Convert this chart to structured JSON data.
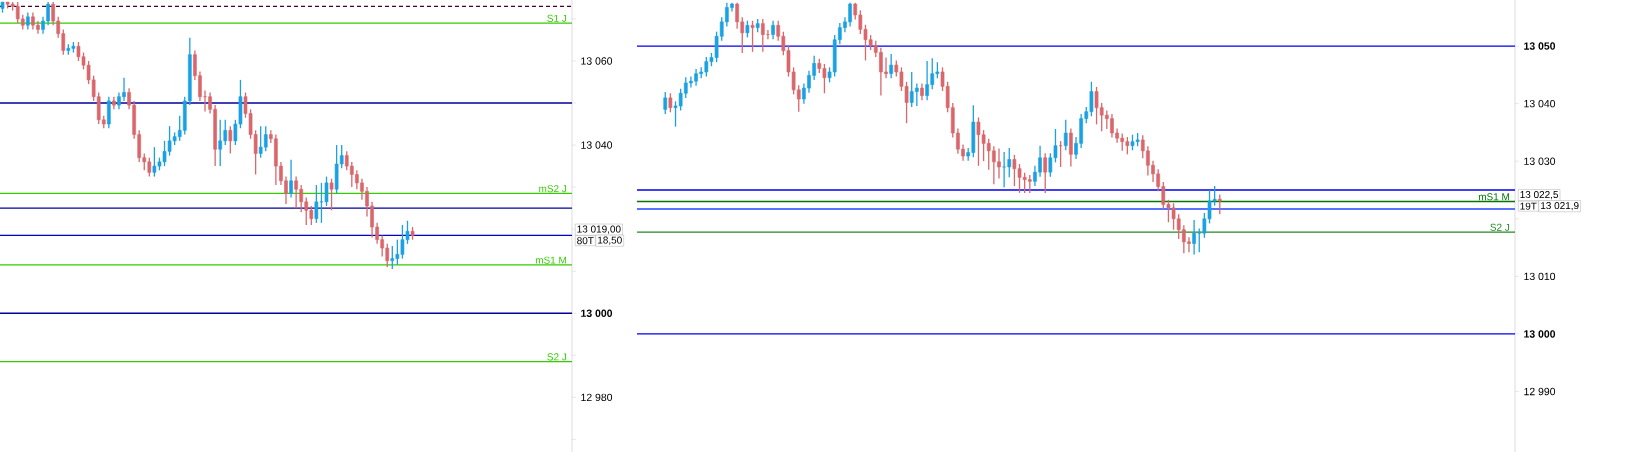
{
  "chart_data": [
    {
      "type": "candlestick",
      "categories": [
        null,
        null,
        null,
        null,
        null,
        null,
        null,
        null,
        null,
        null,
        null,
        null,
        null,
        null,
        null,
        null,
        null,
        null,
        null,
        null,
        null,
        null,
        null,
        null,
        null,
        null,
        null,
        null,
        null,
        null,
        null,
        null,
        null,
        null,
        null,
        null,
        null,
        null,
        null,
        null,
        null,
        null,
        null,
        null,
        null,
        null,
        null,
        null,
        null,
        null,
        null,
        null,
        null,
        null,
        null,
        null,
        null,
        null,
        null,
        null,
        null,
        null,
        null,
        null,
        null,
        null,
        null,
        null,
        null,
        null,
        null,
        null,
        null,
        null,
        null,
        null,
        null,
        null,
        null,
        null,
        null,
        null,
        null,
        null,
        null,
        null,
        null,
        null,
        null,
        null,
        null,
        null,
        null,
        null,
        null,
        null,
        null,
        null,
        null,
        null,
        null,
        null,
        null,
        null,
        null,
        null,
        null,
        null,
        null,
        null,
        null,
        null,
        null
      ],
      "ohlc": [
        [
          13072.5,
          13074,
          13071.5,
          13074
        ],
        [
          13074,
          13074,
          13072.5,
          13073.5
        ],
        [
          13073.5,
          13074,
          13072,
          13073
        ],
        [
          13073,
          13074,
          13069,
          13070
        ],
        [
          13070,
          13071,
          13067.5,
          13068.5
        ],
        [
          13068.5,
          13071.5,
          13067.5,
          13070.5
        ],
        [
          13070.5,
          13071.5,
          13067.5,
          13068.5
        ],
        [
          13068.5,
          13069.5,
          13066.5,
          13067.5
        ],
        [
          13067.5,
          13070.5,
          13066.5,
          13069.5
        ],
        [
          13069.5,
          13074,
          13068.5,
          13073.5
        ],
        [
          13073.5,
          13074,
          13068.5,
          13069.5
        ],
        [
          13069.5,
          13070.5,
          13065.5,
          13066.5
        ],
        [
          13066.5,
          13067.5,
          13061.5,
          13062.5
        ],
        [
          13062.5,
          13064,
          13061.5,
          13063
        ],
        [
          13063,
          13064.5,
          13062,
          13063.5
        ],
        [
          13063.5,
          13064.5,
          13060,
          13061
        ],
        [
          13061,
          13062,
          13058,
          13059
        ],
        [
          13059,
          13060,
          13054.5,
          13055.5
        ],
        [
          13055.5,
          13056.5,
          13050.5,
          13051.5
        ],
        [
          13051.5,
          13052.5,
          13045,
          13046
        ],
        [
          13046,
          13047,
          13044,
          13045
        ],
        [
          13045,
          13051.5,
          13044,
          13050.5
        ],
        [
          13050.5,
          13051.5,
          13048.5,
          13049.5
        ],
        [
          13049.5,
          13052.5,
          13048.5,
          13051.5
        ],
        [
          13051.5,
          13056,
          13050.5,
          13052.5
        ],
        [
          13052.5,
          13053.5,
          13048.5,
          13049.5
        ],
        [
          13049.5,
          13050.5,
          13041.5,
          13042.5
        ],
        [
          13042.5,
          13043.5,
          13036,
          13037
        ],
        [
          13037,
          13038,
          13034,
          13036
        ],
        [
          13036,
          13037,
          13032.5,
          13033.5
        ],
        [
          13033.5,
          13039.5,
          13032.5,
          13035
        ],
        [
          13035,
          13037,
          13034,
          13036
        ],
        [
          13036,
          13041,
          13035,
          13038.5
        ],
        [
          13038.5,
          13044.5,
          13037.5,
          13041
        ],
        [
          13041,
          13043,
          13040,
          13042
        ],
        [
          13042,
          13047,
          13041,
          13043.5
        ],
        [
          13043.5,
          13051.5,
          13042.5,
          13050.5
        ],
        [
          13050.5,
          13065.5,
          13049.5,
          13061.5
        ],
        [
          13061.5,
          13062.5,
          13055.5,
          13056.5
        ],
        [
          13056.5,
          13057.5,
          13050.5,
          13051.5
        ],
        [
          13051.5,
          13053,
          13048,
          13051.5
        ],
        [
          13051.5,
          13052.5,
          13047.5,
          13048.5
        ],
        [
          13048.5,
          13049.5,
          13035,
          13039
        ],
        [
          13039,
          13046,
          13035,
          13041
        ],
        [
          13041,
          13046,
          13040,
          13043.5
        ],
        [
          13043.5,
          13044.5,
          13038,
          13041
        ],
        [
          13041,
          13046,
          13040,
          13045
        ],
        [
          13045,
          13055.5,
          13044,
          13051.5
        ],
        [
          13051.5,
          13052.5,
          13046.5,
          13047.5
        ],
        [
          13047.5,
          13048.5,
          13041.5,
          13042.5
        ],
        [
          13042.5,
          13043.5,
          13033,
          13038
        ],
        [
          13038,
          13044.5,
          13037,
          13039.5
        ],
        [
          13039.5,
          13044.5,
          13038.5,
          13042.5
        ],
        [
          13042.5,
          13043.5,
          13040.5,
          13041.5
        ],
        [
          13041.5,
          13042.5,
          13030.5,
          13035
        ],
        [
          13035,
          13036,
          13030.5,
          13031.5
        ],
        [
          13031.5,
          13032.5,
          13026,
          13028.5
        ],
        [
          13028.5,
          13036.5,
          13027.5,
          13031.5
        ],
        [
          13031.5,
          13032.5,
          13025,
          13029.5
        ],
        [
          13029.5,
          13030.5,
          13024,
          13026.5
        ],
        [
          13026.5,
          13027.5,
          13021,
          13024.5
        ],
        [
          13024.5,
          13025.5,
          13021,
          13022.5
        ],
        [
          13022.5,
          13030.5,
          13021.5,
          13026.5
        ],
        [
          13026.5,
          13031,
          13021.5,
          13026.5
        ],
        [
          13026.5,
          13032.5,
          13025.5,
          13031
        ],
        [
          13031,
          13032,
          13024.5,
          13029.5
        ],
        [
          13029.5,
          13040,
          13028.5,
          13035.5
        ],
        [
          13035.5,
          13040,
          13034.5,
          13037.5
        ],
        [
          13037.5,
          13038.5,
          13034,
          13035
        ],
        [
          13035,
          13036,
          13030,
          13033
        ],
        [
          13033,
          13034,
          13029.5,
          13031
        ],
        [
          13031,
          13032,
          13027,
          13029
        ],
        [
          13029,
          13030,
          13023,
          13025.5
        ],
        [
          13025.5,
          13026.5,
          13018,
          13020.5
        ],
        [
          13020.5,
          13021.5,
          13016.5,
          13017.5
        ],
        [
          13017.5,
          13018.5,
          13013.5,
          13015.5
        ],
        [
          13015.5,
          13016.5,
          13011,
          13012.5
        ],
        [
          13012.5,
          13016,
          13010.5,
          13013
        ],
        [
          13013,
          13017.5,
          13011.5,
          13014
        ],
        [
          13014,
          13021,
          13013,
          13017.5
        ],
        [
          13017.5,
          13022,
          13016.5,
          13019.5
        ],
        [
          13019.5,
          13020.5,
          13017.5,
          13018.5
        ],
        null,
        null,
        null,
        null,
        null,
        null,
        null,
        null,
        null,
        null,
        null,
        null,
        null,
        null,
        null,
        null,
        null,
        null,
        null,
        null,
        null,
        null,
        null,
        null,
        null,
        null,
        null,
        null,
        null,
        null,
        null
      ],
      "colors": [
        "#1ba1e2",
        "#d9676b",
        "#d9676b",
        "#d9676b",
        "#d9676b",
        "#1ba1e2",
        "#d9676b",
        "#d9676b",
        "#1ba1e2",
        "#1ba1e2",
        "#d9676b",
        "#d9676b",
        "#d9676b",
        "#1ba1e2",
        "#1ba1e2",
        "#d9676b",
        "#d9676b",
        "#d9676b",
        "#d9676b",
        "#d9676b",
        "#d9676b",
        "#1ba1e2",
        "#d9676b",
        "#1ba1e2",
        "#1ba1e2",
        "#d9676b",
        "#d9676b",
        "#d9676b",
        "#d9676b",
        "#d9676b",
        "#1ba1e2",
        "#1ba1e2",
        "#1ba1e2",
        "#1ba1e2",
        "#1ba1e2",
        "#1ba1e2",
        "#1ba1e2",
        "#1ba1e2",
        "#d9676b",
        "#d9676b",
        "#d9676b",
        "#d9676b",
        "#d9676b",
        "#1ba1e2",
        "#1ba1e2",
        "#d9676b",
        "#1ba1e2",
        "#1ba1e2",
        "#d9676b",
        "#d9676b",
        "#d9676b",
        "#1ba1e2",
        "#1ba1e2",
        "#d9676b",
        "#d9676b",
        "#d9676b",
        "#d9676b",
        "#1ba1e2",
        "#d9676b",
        "#d9676b",
        "#d9676b",
        "#d9676b",
        "#1ba1e2",
        "#1ba1e2",
        "#1ba1e2",
        "#d9676b",
        "#1ba1e2",
        "#1ba1e2",
        "#d9676b",
        "#d9676b",
        "#d9676b",
        "#d9676b",
        "#d9676b",
        "#d9676b",
        "#d9676b",
        "#d9676b",
        "#d9676b",
        "#1ba1e2",
        "#1ba1e2",
        "#1ba1e2",
        "#1ba1e2",
        "#d9676b",
        null,
        null,
        null,
        null,
        null,
        null,
        null,
        null,
        null,
        null,
        null,
        null,
        null,
        null,
        null,
        null,
        null,
        null,
        null,
        null,
        null,
        null,
        null,
        null,
        null,
        null,
        null,
        null,
        null,
        null,
        null
      ],
      "ylim": [
        12967,
        13074.5
      ],
      "yticks": [
        {
          "value": 12970,
          "label": null
        },
        {
          "value": 12980,
          "label": "12 980"
        },
        {
          "value": 12990,
          "label": null
        },
        {
          "value": 13000,
          "label": "**13 000**"
        },
        {
          "value": 13010,
          "label": null
        },
        {
          "value": 13020,
          "label": null
        },
        {
          "value": 13030,
          "label": null
        },
        {
          "value": 13040,
          "label": "13 040"
        },
        {
          "value": 13050,
          "label": null
        },
        {
          "value": 13060,
          "label": "13 060"
        },
        {
          "value": 13070,
          "label": null
        }
      ],
      "ref_lines": [
        {
          "axis": "y",
          "value": 13073,
          "color": "#440033",
          "line_style": "dashed"
        },
        {
          "axis": "y",
          "value": 13069,
          "label": "S1 J",
          "color": "#33cc00"
        },
        {
          "axis": "y",
          "value": 13050,
          "color": "#000099"
        },
        {
          "axis": "y",
          "value": 13028.5,
          "label": "mS2 J",
          "color": "#33cc00"
        },
        {
          "axis": "y",
          "value": 13025,
          "color": "#000099"
        },
        {
          "axis": "y",
          "value": 13018.5,
          "color": "#0000cc"
        },
        {
          "axis": "y",
          "value": 13011.5,
          "label": "mS1 M",
          "color": "#33cc00"
        },
        {
          "axis": "y",
          "value": 13000,
          "color": "#000099"
        },
        {
          "axis": "y",
          "value": 12988.5,
          "label": "S2 J",
          "color": "#33cc00"
        }
      ],
      "annotations": [
        "13 019,00",
        "80T",
        "18,50"
      ]
    },
    {
      "type": "candlestick",
      "categories": [
        null,
        null,
        null,
        null,
        null,
        null,
        null,
        null,
        null,
        null,
        null,
        null,
        null,
        null,
        null,
        null,
        null,
        null,
        null,
        null,
        null,
        null,
        null,
        null,
        null,
        null,
        null,
        null,
        null,
        null,
        null,
        null,
        null,
        null,
        null,
        null,
        null,
        null,
        null,
        null,
        null,
        null,
        null,
        null,
        null,
        null,
        null,
        null,
        null,
        null,
        null,
        null,
        null,
        null,
        null,
        null,
        null,
        null,
        null,
        null,
        null,
        null,
        null,
        null,
        null,
        null,
        null,
        null,
        null,
        null,
        null,
        null,
        null,
        null,
        null,
        null,
        null,
        null,
        null,
        null,
        null,
        null,
        null,
        null,
        null,
        null,
        null,
        null,
        null,
        null,
        null,
        null,
        null,
        null,
        null,
        null,
        null,
        null,
        null,
        null,
        null,
        null,
        null,
        null,
        null,
        null,
        null,
        null,
        null,
        null,
        null,
        null,
        null,
        null,
        null,
        null,
        null,
        null,
        null,
        null,
        null,
        null,
        null,
        null,
        null,
        null,
        null,
        null,
        null,
        null,
        null,
        null,
        null,
        null,
        null,
        null,
        null,
        null,
        null,
        null,
        null,
        null,
        null,
        null,
        null,
        null,
        null,
        null,
        null,
        null,
        null,
        null,
        null,
        null,
        null,
        null,
        null,
        null,
        null,
        null,
        null,
        null,
        null,
        null,
        null,
        null,
        null,
        null,
        null,
        null,
        null
      ],
      "ohlc": [
        null,
        null,
        null,
        null,
        null,
        [
          13039,
          13042,
          13038.2,
          13041
        ],
        [
          13041,
          13041.8,
          13038.5,
          13039.3
        ],
        [
          13039.3,
          13040.4,
          13036,
          13039.6
        ],
        [
          13039.6,
          13042.6,
          13038.8,
          13041.8
        ],
        [
          13041.8,
          13044.6,
          13041,
          13043.6
        ],
        [
          13043.6,
          13044.7,
          13042.8,
          13043.9
        ],
        [
          13043.9,
          13046,
          13043.1,
          13045.2
        ],
        [
          13045.2,
          13046.3,
          13044.4,
          13045.5
        ],
        [
          13045.5,
          13048.1,
          13044.7,
          13047.3
        ],
        [
          13047.3,
          13048.8,
          13046.5,
          13048
        ],
        [
          13048,
          13052.5,
          13047.2,
          13051.7
        ],
        [
          13051.7,
          13055,
          13050.9,
          13054.2
        ],
        [
          13054.2,
          13057.5,
          13053.4,
          13056.7
        ],
        [
          13056.7,
          13057.5,
          13056,
          13057.3
        ],
        [
          13057.3,
          13057.5,
          13053,
          13054.2
        ],
        [
          13054.2,
          13055,
          13048.8,
          13052.3
        ],
        [
          13052.3,
          13054.4,
          13051.5,
          13053.6
        ],
        [
          13053.6,
          13054.4,
          13049,
          13053.2
        ],
        [
          13053.2,
          13054.7,
          13052.4,
          13053.9
        ],
        [
          13053.9,
          13054.7,
          13049,
          13052
        ],
        [
          13052,
          13052.8,
          13051.2,
          13052
        ],
        [
          13052,
          13054.4,
          13051.2,
          13053.6
        ],
        [
          13053.6,
          13054.4,
          13050.9,
          13051.7
        ],
        [
          13051.7,
          13052.5,
          13048.4,
          13049.2
        ],
        [
          13049.2,
          13050,
          13044.7,
          13045.5
        ],
        [
          13045.5,
          13046.3,
          13041.6,
          13042.4
        ],
        [
          13042.4,
          13043.2,
          13038.6,
          13040.8
        ],
        [
          13040.8,
          13043.5,
          13040,
          13042.7
        ],
        [
          13042.7,
          13045.7,
          13041.9,
          13044.9
        ],
        [
          13044.9,
          13048.3,
          13044.1,
          13047
        ],
        [
          13047,
          13047.8,
          13045.3,
          13046.1
        ],
        [
          13046.1,
          13046.9,
          13041.8,
          13044.5
        ],
        [
          13044.5,
          13046.3,
          13043.7,
          13045.5
        ],
        [
          13045.5,
          13051.9,
          13044.7,
          13051.1
        ],
        [
          13051.1,
          13054,
          13050.3,
          13053.2
        ],
        [
          13053.2,
          13055,
          13052.4,
          13054.2
        ],
        [
          13054.2,
          13057.5,
          13053.4,
          13057.3
        ],
        [
          13057.3,
          13057.5,
          13054.6,
          13055.4
        ],
        [
          13055.4,
          13056.2,
          13052.1,
          13052.9
        ],
        [
          13052.9,
          13053.7,
          13047.5,
          13051.1
        ],
        [
          13051.1,
          13051.9,
          13049.3,
          13050.1
        ],
        [
          13050.1,
          13050.9,
          13048.1,
          13048.9
        ],
        [
          13048.9,
          13049.7,
          13041.4,
          13045.5
        ],
        [
          13045.5,
          13048,
          13044.4,
          13045.2
        ],
        [
          13045.2,
          13048.6,
          13044.4,
          13046.7
        ],
        [
          13046.7,
          13047.5,
          13044.7,
          13045.5
        ],
        [
          13045.5,
          13046.3,
          13042.2,
          13043
        ],
        [
          13043,
          13043.8,
          13036.6,
          13040.2
        ],
        [
          13040.2,
          13045.5,
          13039.4,
          13042.1
        ],
        [
          13042.1,
          13043.5,
          13039.6,
          13042.7
        ],
        [
          13042.7,
          13043.5,
          13040.6,
          13041.4
        ],
        [
          13041.4,
          13047.4,
          13040.6,
          13043.3
        ],
        [
          13043.3,
          13047.9,
          13042.5,
          13045.2
        ],
        [
          13045.2,
          13047.2,
          13044.4,
          13045.5
        ],
        [
          13045.5,
          13046.3,
          13042.2,
          13043
        ],
        [
          13043,
          13043.8,
          13038.5,
          13039.3
        ],
        [
          13039.3,
          13040.1,
          13034.1,
          13034.9
        ],
        [
          13034.9,
          13035.7,
          13031.3,
          13032.1
        ],
        [
          13032.1,
          13032.9,
          13030.1,
          13030.9
        ],
        [
          13030.9,
          13032.3,
          13030.1,
          13031.5
        ],
        [
          13031.5,
          13039.7,
          13030.7,
          13036.8
        ],
        [
          13036.8,
          13037.6,
          13029.2,
          13034.6
        ],
        [
          13034.6,
          13035.4,
          13030,
          13033.1
        ],
        [
          13033.1,
          13033.9,
          13028.5,
          13031.8
        ],
        [
          13031.8,
          13032.6,
          13026,
          13029.9
        ],
        [
          13029.9,
          13032.2,
          13027,
          13029
        ],
        [
          13029,
          13031.6,
          13025.5,
          13029
        ],
        [
          13029,
          13032.3,
          13027.2,
          13030.3
        ],
        [
          13030.3,
          13031.1,
          13025.7,
          13028.7
        ],
        [
          13028.7,
          13029.5,
          13024.5,
          13027.2
        ],
        [
          13027.2,
          13028,
          13024.5,
          13026.8
        ],
        [
          13026.8,
          13027.6,
          13024.5,
          13026.5
        ],
        [
          13026.5,
          13029.2,
          13025.7,
          13028.1
        ],
        [
          13028.1,
          13032.7,
          13027.3,
          13030.6
        ],
        [
          13030.6,
          13031.4,
          13024.5,
          13028.1
        ],
        [
          13028.1,
          13031.4,
          13027.3,
          13030.6
        ],
        [
          13030.6,
          13035.6,
          13029.8,
          13032.7
        ],
        [
          13032.7,
          13033.5,
          13029,
          13032.7
        ],
        [
          13032.7,
          13037.2,
          13031.9,
          13034.9
        ],
        [
          13034.9,
          13035.7,
          13029.1,
          13031.2
        ],
        [
          13031.2,
          13034.2,
          13030.4,
          13033.1
        ],
        [
          13033.1,
          13038.2,
          13032.3,
          13037.4
        ],
        [
          13037.4,
          13039.4,
          13036.6,
          13038.6
        ],
        [
          13038.6,
          13043.8,
          13037.8,
          13042.1
        ],
        [
          13042.1,
          13042.9,
          13036.4,
          13039.3
        ],
        [
          13039.3,
          13040.1,
          13035.2,
          13038
        ],
        [
          13038,
          13038.8,
          13035.6,
          13037.4
        ],
        [
          13037.4,
          13038.2,
          13034.1,
          13034.9
        ],
        [
          13034.9,
          13035.7,
          13033.2,
          13034
        ],
        [
          13034,
          13034.8,
          13031.8,
          13033.4
        ],
        [
          13033.4,
          13034.2,
          13031.2,
          13032.7
        ],
        [
          13032.7,
          13034.6,
          13031.9,
          13033.4
        ],
        [
          13033.4,
          13034.9,
          13032.6,
          13033.7
        ],
        [
          13033.7,
          13034.5,
          13030.5,
          13031.8
        ],
        [
          13031.8,
          13032.6,
          13027.5,
          13029.3
        ],
        [
          13029.3,
          13030.1,
          13026.4,
          13027.8
        ],
        [
          13027.8,
          13028.6,
          13024.8,
          13025.6
        ],
        [
          13025.6,
          13026.4,
          13021.7,
          13022.5
        ],
        [
          13022.5,
          13023.3,
          13019.4,
          13021.9
        ],
        [
          13021.9,
          13022.7,
          13018.1,
          13020
        ],
        [
          13020,
          13020.8,
          13016.5,
          13018.1
        ],
        [
          13018.1,
          13018.9,
          13014,
          13016
        ],
        [
          13016,
          13016.8,
          13014.2,
          13015.7
        ],
        [
          13015.7,
          13019.8,
          13013.8,
          13017.5
        ],
        [
          13017.5,
          13018.3,
          13014.2,
          13017.5
        ],
        [
          13017.5,
          13021,
          13016.7,
          13020
        ],
        [
          13020,
          13025,
          13019.2,
          13023.1
        ],
        [
          13023.1,
          13025.7,
          13022.3,
          13023.4
        ],
        [
          13023.4,
          13024.2,
          13020.8,
          13023.1
        ],
        null,
        null,
        null,
        null,
        null,
        null,
        null,
        null,
        null,
        null,
        null,
        null,
        null,
        null,
        null,
        null,
        null,
        null,
        null,
        null,
        null,
        null,
        null,
        null,
        null,
        null,
        null,
        null,
        null,
        null,
        null,
        null,
        null,
        null,
        null,
        null,
        null,
        null,
        null,
        null,
        null,
        null,
        null,
        null,
        null,
        null,
        null,
        null,
        null,
        null,
        null,
        null,
        null,
        null,
        null,
        null,
        null
      ],
      "colors": [
        null,
        null,
        null,
        null,
        null,
        "#1ba1e2",
        "#d9676b",
        "#1ba1e2",
        "#1ba1e2",
        "#1ba1e2",
        "#1ba1e2",
        "#1ba1e2",
        "#1ba1e2",
        "#1ba1e2",
        "#1ba1e2",
        "#1ba1e2",
        "#1ba1e2",
        "#1ba1e2",
        "#1ba1e2",
        "#d9676b",
        "#d9676b",
        "#1ba1e2",
        "#d9676b",
        "#1ba1e2",
        "#d9676b",
        "#d9676b",
        "#1ba1e2",
        "#d9676b",
        "#d9676b",
        "#d9676b",
        "#d9676b",
        "#d9676b",
        "#1ba1e2",
        "#1ba1e2",
        "#1ba1e2",
        "#d9676b",
        "#d9676b",
        "#1ba1e2",
        "#1ba1e2",
        "#1ba1e2",
        "#1ba1e2",
        "#1ba1e2",
        "#d9676b",
        "#d9676b",
        "#d9676b",
        "#d9676b",
        "#d9676b",
        "#d9676b",
        "#d9676b",
        "#1ba1e2",
        "#d9676b",
        "#d9676b",
        "#d9676b",
        "#1ba1e2",
        "#1ba1e2",
        "#d9676b",
        "#1ba1e2",
        "#1ba1e2",
        "#1ba1e2",
        "#d9676b",
        "#d9676b",
        "#d9676b",
        "#d9676b",
        "#d9676b",
        "#1ba1e2",
        "#1ba1e2",
        "#d9676b",
        "#d9676b",
        "#d9676b",
        "#d9676b",
        "#d9676b",
        "#1ba1e2",
        "#1ba1e2",
        "#d9676b",
        "#d9676b",
        "#d9676b",
        "#d9676b",
        "#1ba1e2",
        "#1ba1e2",
        "#d9676b",
        "#1ba1e2",
        "#1ba1e2",
        "#d9676b",
        "#1ba1e2",
        "#d9676b",
        "#1ba1e2",
        "#1ba1e2",
        "#1ba1e2",
        "#1ba1e2",
        "#d9676b",
        "#d9676b",
        "#d9676b",
        "#d9676b",
        "#d9676b",
        "#d9676b",
        "#d9676b",
        "#1ba1e2",
        "#1ba1e2",
        "#d9676b",
        "#d9676b",
        "#d9676b",
        "#d9676b",
        "#d9676b",
        "#d9676b",
        "#d9676b",
        "#d9676b",
        "#d9676b",
        "#d9676b",
        "#1ba1e2",
        "#1ba1e2",
        "#1ba1e2",
        "#1ba1e2",
        "#1ba1e2",
        "#d9676b",
        null,
        null,
        null,
        null,
        null,
        null,
        null,
        null,
        null,
        null,
        null,
        null,
        null,
        null,
        null,
        null,
        null,
        null,
        null,
        null,
        null,
        null,
        null,
        null,
        null,
        null,
        null,
        null,
        null,
        null,
        null,
        null,
        null,
        null,
        null,
        null,
        null,
        null,
        null,
        null,
        null,
        null,
        null,
        null,
        null,
        null,
        null,
        null,
        null,
        null,
        null,
        null,
        null,
        null,
        null,
        null,
        null
      ],
      "ylim": [
        12979.5,
        13058
      ],
      "yticks": [
        {
          "value": 12990,
          "label": "12 990"
        },
        {
          "value": 13000,
          "label": "**13 000**"
        },
        {
          "value": 13010,
          "label": "13 010"
        },
        {
          "value": 13020,
          "label": null
        },
        {
          "value": 13030,
          "label": "13 030"
        },
        {
          "value": 13040,
          "label": "13 040"
        },
        {
          "value": 13050,
          "label": "**13 050**"
        }
      ],
      "ref_lines": [
        {
          "axis": "y",
          "value": 13050,
          "color": "#0000ee"
        },
        {
          "axis": "y",
          "value": 13025,
          "color": "#0000ee"
        },
        {
          "axis": "y",
          "value": 13023,
          "label": "mS1 M",
          "color": "#007700"
        },
        {
          "axis": "y",
          "value": 13021.7,
          "color": "#2244ff"
        },
        {
          "axis": "y",
          "value": 13017.7,
          "label": "S2 J",
          "color": "#228822"
        },
        {
          "axis": "y",
          "value": 13000,
          "color": "#0000ee"
        }
      ],
      "annotations": [
        "13 022,5",
        "19T",
        "13 021,9"
      ]
    }
  ]
}
